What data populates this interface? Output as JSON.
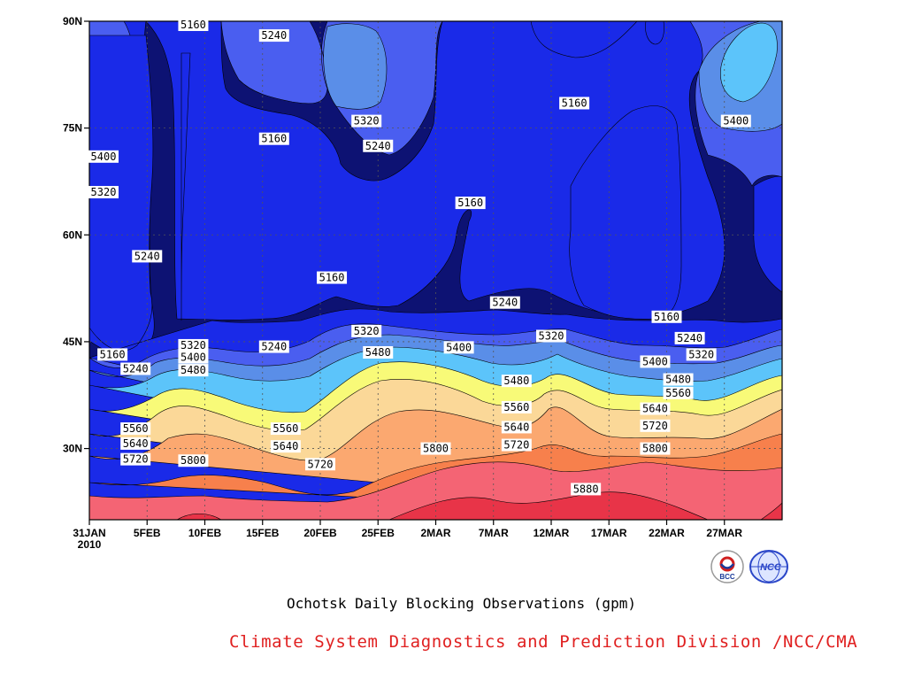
{
  "chart_data": {
    "type": "contour",
    "title": "Ochotsk Daily Blocking Observations (gpm)",
    "y_axis": {
      "range": [
        20,
        90
      ],
      "ticks": [
        {
          "value": 90,
          "label": "90N"
        },
        {
          "value": 75,
          "label": "75N"
        },
        {
          "value": 60,
          "label": "60N"
        },
        {
          "value": 45,
          "label": "45N"
        },
        {
          "value": 30,
          "label": "30N"
        }
      ]
    },
    "x_axis": {
      "range": [
        "2010-01-31",
        "2010-04-01"
      ],
      "ticks": [
        {
          "value": "2010-01-31",
          "label": "31JAN",
          "sublabel": "2010"
        },
        {
          "value": "2010-02-05",
          "label": "5FEB"
        },
        {
          "value": "2010-02-10",
          "label": "10FEB"
        },
        {
          "value": "2010-02-15",
          "label": "15FEB"
        },
        {
          "value": "2010-02-20",
          "label": "20FEB"
        },
        {
          "value": "2010-02-25",
          "label": "25FEB"
        },
        {
          "value": "2010-03-02",
          "label": "2MAR"
        },
        {
          "value": "2010-03-07",
          "label": "7MAR"
        },
        {
          "value": "2010-03-12",
          "label": "12MAR"
        },
        {
          "value": "2010-03-17",
          "label": "17MAR"
        },
        {
          "value": "2010-03-22",
          "label": "22MAR"
        },
        {
          "value": "2010-03-27",
          "label": "27MAR"
        }
      ]
    },
    "grid": true,
    "contour_levels": [
      5160,
      5240,
      5320,
      5400,
      5480,
      5560,
      5640,
      5720,
      5800,
      5880
    ],
    "colors": [
      "#0d1273",
      "#1a2ae8",
      "#4a5ef0",
      "#5a8ee8",
      "#5cc4fa",
      "#f8fa78",
      "#fbd898",
      "#fba870",
      "#f7804c",
      "#f46474",
      "#e83448"
    ],
    "contour_labels": [
      {
        "text": "5160",
        "date": "2010-02-09",
        "lat": 89.5
      },
      {
        "text": "5240",
        "date": "2010-02-16",
        "lat": 88
      },
      {
        "text": "5320",
        "date": "2010-02-24",
        "lat": 76
      },
      {
        "text": "5160",
        "date": "2010-02-16",
        "lat": 73.5
      },
      {
        "text": "5240",
        "date": "2010-02-25",
        "lat": 72.5
      },
      {
        "text": "5160",
        "date": "2010-03-14",
        "lat": 78.5
      },
      {
        "text": "5400",
        "date": "2010-03-28",
        "lat": 76
      },
      {
        "text": "5400",
        "date": "2010-02-01",
        "lat": 71
      },
      {
        "text": "5320",
        "date": "2010-02-01",
        "lat": 66
      },
      {
        "text": "5160",
        "date": "2010-03-05",
        "lat": 64.5
      },
      {
        "text": "5240",
        "date": "2010-02-05",
        "lat": 57
      },
      {
        "text": "5160",
        "date": "2010-02-21",
        "lat": 54
      },
      {
        "text": "5240",
        "date": "2010-03-08",
        "lat": 50.5
      },
      {
        "text": "5160",
        "date": "2010-03-22",
        "lat": 48.5
      },
      {
        "text": "5320",
        "date": "2010-02-24",
        "lat": 46.5
      },
      {
        "text": "5320",
        "date": "2010-03-12",
        "lat": 45.8
      },
      {
        "text": "5240",
        "date": "2010-03-24",
        "lat": 45.5
      },
      {
        "text": "5320",
        "date": "2010-03-25",
        "lat": 43.2
      },
      {
        "text": "5320",
        "date": "2010-02-09",
        "lat": 44.5
      },
      {
        "text": "5240",
        "date": "2010-02-16",
        "lat": 44.3
      },
      {
        "text": "5400",
        "date": "2010-03-04",
        "lat": 44.2
      },
      {
        "text": "5160",
        "date": "2010-02-02",
        "lat": 43.2
      },
      {
        "text": "5400",
        "date": "2010-02-09",
        "lat": 42.8
      },
      {
        "text": "5480",
        "date": "2010-02-25",
        "lat": 43.5
      },
      {
        "text": "5400",
        "date": "2010-03-21",
        "lat": 42.2
      },
      {
        "text": "5240",
        "date": "2010-02-04",
        "lat": 41.2
      },
      {
        "text": "5480",
        "date": "2010-02-09",
        "lat": 41
      },
      {
        "text": "5480",
        "date": "2010-03-09",
        "lat": 39.5
      },
      {
        "text": "5480",
        "date": "2010-03-23",
        "lat": 39.7
      },
      {
        "text": "5560",
        "date": "2010-03-23",
        "lat": 37.8
      },
      {
        "text": "5560",
        "date": "2010-03-09",
        "lat": 35.8
      },
      {
        "text": "5640",
        "date": "2010-03-21",
        "lat": 35.6
      },
      {
        "text": "5560",
        "date": "2010-02-04",
        "lat": 32.8
      },
      {
        "text": "5560",
        "date": "2010-02-17",
        "lat": 32.8
      },
      {
        "text": "5640",
        "date": "2010-03-09",
        "lat": 33
      },
      {
        "text": "5720",
        "date": "2010-03-21",
        "lat": 33.2
      },
      {
        "text": "5640",
        "date": "2010-02-04",
        "lat": 30.7
      },
      {
        "text": "5640",
        "date": "2010-02-17",
        "lat": 30.3
      },
      {
        "text": "5720",
        "date": "2010-03-09",
        "lat": 30.5
      },
      {
        "text": "5800",
        "date": "2010-03-02",
        "lat": 30
      },
      {
        "text": "5800",
        "date": "2010-03-21",
        "lat": 30
      },
      {
        "text": "5720",
        "date": "2010-02-04",
        "lat": 28.5
      },
      {
        "text": "5800",
        "date": "2010-02-09",
        "lat": 28.3
      },
      {
        "text": "5720",
        "date": "2010-02-20",
        "lat": 27.8
      },
      {
        "text": "5880",
        "date": "2010-03-15",
        "lat": 24.3
      }
    ]
  },
  "credit": "Climate System Diagnostics and Prediction Division /NCC/CMA",
  "logos": [
    {
      "name": "bcc-logo",
      "text": "BCC",
      "color": "#1a3a9a"
    },
    {
      "name": "ncc-logo",
      "text": "NCC",
      "color": "#2a46c8"
    }
  ]
}
